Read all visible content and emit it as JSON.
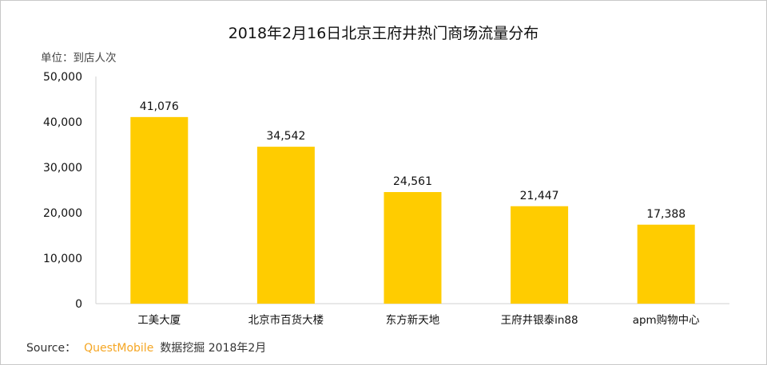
{
  "chart_data": {
    "type": "bar",
    "title": "2018年2月16日北京王府井热门商场流量分布",
    "ylabel": "单位：到店人次",
    "xlabel": "",
    "categories": [
      "工美大厦",
      "北京市百货大楼",
      "东方新天地",
      "王府井银泰in88",
      "apm购物中心"
    ],
    "values": [
      41076,
      34542,
      24561,
      21447,
      17388
    ],
    "data_labels": [
      "41,076",
      "34,542",
      "24,561",
      "21,447",
      "17,388"
    ],
    "ylim": [
      0,
      50000
    ],
    "yticks": [
      "0",
      "10,000",
      "20,000",
      "30,000",
      "40,000",
      "50,000"
    ],
    "grid": false,
    "bar_color": "#ffcc00"
  },
  "source": {
    "label": "Source：",
    "brand": "QuestMobile",
    "text": "数据挖掘 2018年2月"
  }
}
